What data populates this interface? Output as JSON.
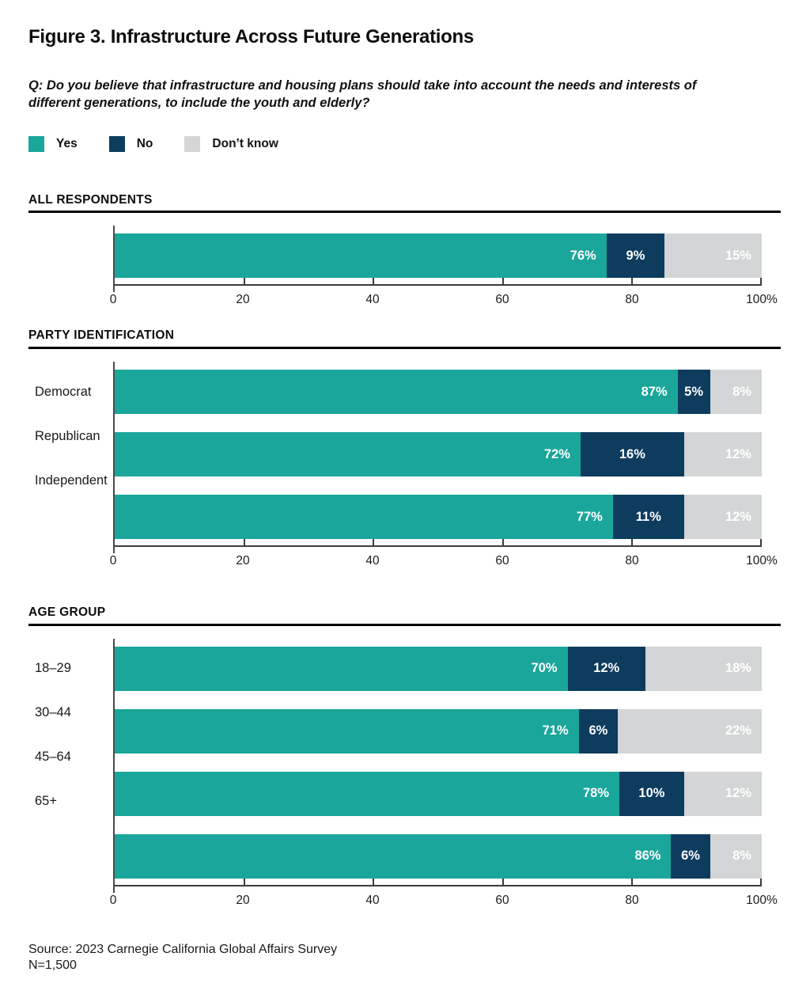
{
  "header": {
    "title": "Figure 3. Infrastructure Across Future Generations",
    "question": "Q: Do you believe that infrastructure and housing plans should take into account the needs and interests of different generations, to include the youth and elderly?"
  },
  "legend": {
    "items": [
      {
        "key": "yes",
        "label": "Yes",
        "color": "#1AA69A"
      },
      {
        "key": "no",
        "label": "No",
        "color": "#0E3C5E"
      },
      {
        "key": "dont-know",
        "label": "Don’t know",
        "color": "#D3D5D6"
      }
    ]
  },
  "axis": {
    "tick_positions": [
      0,
      20,
      40,
      60,
      80,
      100
    ],
    "tick_labels": [
      "0",
      "20",
      "40",
      "60",
      "80",
      "100%"
    ]
  },
  "source": {
    "line1": "Source: 2023 Carnegie California Global Affairs Survey",
    "line2": "N=1,500"
  },
  "chart_data": [
    {
      "type": "bar",
      "stacked": true,
      "orientation": "horizontal",
      "section": "ALL RESPONDENTS",
      "categories": [
        ""
      ],
      "series": [
        {
          "name": "Yes",
          "values": [
            76
          ]
        },
        {
          "name": "No",
          "values": [
            9
          ]
        },
        {
          "name": "Don’t know",
          "values": [
            15
          ]
        }
      ],
      "xlim": [
        0,
        100
      ],
      "grid": false,
      "legend_position": "top"
    },
    {
      "type": "bar",
      "stacked": true,
      "orientation": "horizontal",
      "section": "PARTY IDENTIFICATION",
      "categories": [
        "Democrat",
        "Republican",
        "Independent"
      ],
      "series": [
        {
          "name": "Yes",
          "values": [
            87,
            72,
            77
          ]
        },
        {
          "name": "No",
          "values": [
            5,
            16,
            11
          ]
        },
        {
          "name": "Don’t know",
          "values": [
            8,
            12,
            12
          ]
        }
      ],
      "xlim": [
        0,
        100
      ],
      "grid": false,
      "legend_position": "top"
    },
    {
      "type": "bar",
      "stacked": true,
      "orientation": "horizontal",
      "section": "AGE GROUP",
      "categories": [
        "18–29",
        "30–44",
        "45–64",
        "65+"
      ],
      "series": [
        {
          "name": "Yes",
          "values": [
            70,
            71,
            78,
            86
          ]
        },
        {
          "name": "No",
          "values": [
            12,
            6,
            10,
            6
          ]
        },
        {
          "name": "Don’t know",
          "values": [
            18,
            22,
            12,
            8
          ]
        }
      ],
      "xlim": [
        0,
        100
      ],
      "grid": false,
      "legend_position": "top"
    }
  ]
}
